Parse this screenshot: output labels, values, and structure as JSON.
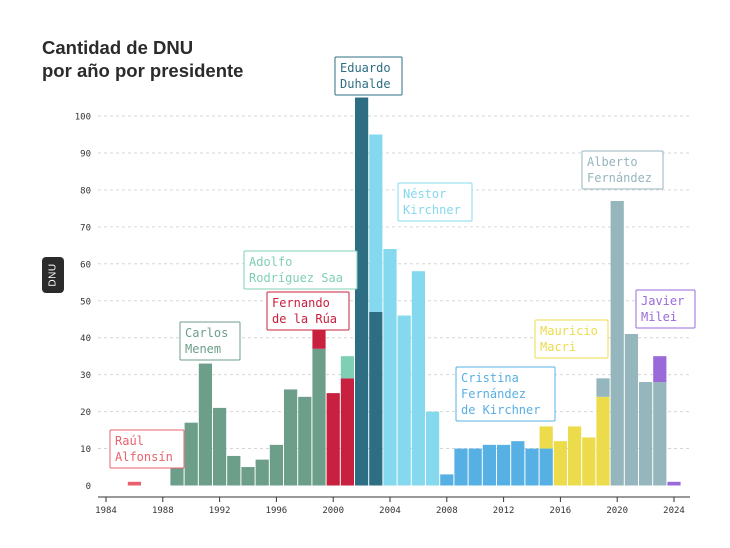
{
  "title_line1": "Cantidad de DNU",
  "title_line2": "por año por presidente",
  "chart_data": {
    "type": "bar",
    "title": "Cantidad de DNU por año por presidente",
    "ylabel": "DNU",
    "xlabel": "",
    "ylim": [
      0,
      105
    ],
    "yticks": [
      0,
      10,
      20,
      30,
      40,
      50,
      60,
      70,
      80,
      90,
      100
    ],
    "xlim": [
      1984,
      2024.5
    ],
    "xticks": [
      1984,
      1988,
      1992,
      1996,
      2000,
      2004,
      2008,
      2012,
      2016,
      2020,
      2024
    ],
    "grid": true,
    "legend": "none",
    "presidents": [
      {
        "id": "alfonsin",
        "label": [
          "Raúl",
          "Alfonsín"
        ],
        "color": "#e8626d"
      },
      {
        "id": "menem",
        "label": [
          "Carlos",
          "Menem"
        ],
        "color": "#6c9e8a"
      },
      {
        "id": "rodriguez_saa",
        "label": [
          "Adolfo",
          "Rodríguez Saa"
        ],
        "color": "#7fcfb5"
      },
      {
        "id": "de_la_rua",
        "label": [
          "Fernando",
          "de la Rúa"
        ],
        "color": "#c8203f"
      },
      {
        "id": "duhalde",
        "label": [
          "Eduardo",
          "Duhalde"
        ],
        "color": "#2e6e82"
      },
      {
        "id": "kirchner",
        "label": [
          "Néstor",
          "Kirchner"
        ],
        "color": "#84d9ee"
      },
      {
        "id": "cfk",
        "label": [
          "Cristina",
          "Fernández",
          "de Kirchner"
        ],
        "color": "#57b0e4"
      },
      {
        "id": "macri",
        "label": [
          "Mauricio",
          "Macri"
        ],
        "color": "#ecdc4c"
      },
      {
        "id": "fernandez",
        "label": [
          "Alberto",
          "Fernández"
        ],
        "color": "#95b6bd"
      },
      {
        "id": "milei",
        "label": [
          "Javier",
          "Milei"
        ],
        "color": "#9a6ad8"
      }
    ],
    "bars": [
      {
        "year": 1986,
        "segments": [
          {
            "president": "alfonsin",
            "value": 1
          }
        ]
      },
      {
        "year": 1989,
        "segments": [
          {
            "president": "menem",
            "value": 5
          }
        ]
      },
      {
        "year": 1990,
        "segments": [
          {
            "president": "menem",
            "value": 17
          }
        ]
      },
      {
        "year": 1991,
        "segments": [
          {
            "president": "menem",
            "value": 33
          }
        ]
      },
      {
        "year": 1992,
        "segments": [
          {
            "president": "menem",
            "value": 21
          }
        ]
      },
      {
        "year": 1993,
        "segments": [
          {
            "president": "menem",
            "value": 8
          }
        ]
      },
      {
        "year": 1994,
        "segments": [
          {
            "president": "menem",
            "value": 5
          }
        ]
      },
      {
        "year": 1995,
        "segments": [
          {
            "president": "menem",
            "value": 7
          }
        ]
      },
      {
        "year": 1996,
        "segments": [
          {
            "president": "menem",
            "value": 11
          }
        ]
      },
      {
        "year": 1997,
        "segments": [
          {
            "president": "menem",
            "value": 26
          }
        ]
      },
      {
        "year": 1998,
        "segments": [
          {
            "president": "menem",
            "value": 24
          }
        ]
      },
      {
        "year": 1999,
        "segments": [
          {
            "president": "menem",
            "value": 37
          },
          {
            "president": "de_la_rua",
            "value": 5
          }
        ]
      },
      {
        "year": 2000,
        "segments": [
          {
            "president": "de_la_rua",
            "value": 25
          }
        ]
      },
      {
        "year": 2001,
        "segments": [
          {
            "president": "de_la_rua",
            "value": 29
          },
          {
            "president": "rodriguez_saa",
            "value": 6
          }
        ]
      },
      {
        "year": 2002,
        "segments": [
          {
            "president": "duhalde",
            "value": 105
          }
        ]
      },
      {
        "year": 2003,
        "segments": [
          {
            "president": "duhalde",
            "value": 47
          },
          {
            "president": "kirchner",
            "value": 48
          }
        ]
      },
      {
        "year": 2004,
        "segments": [
          {
            "president": "kirchner",
            "value": 64
          }
        ]
      },
      {
        "year": 2005,
        "segments": [
          {
            "president": "kirchner",
            "value": 46
          }
        ]
      },
      {
        "year": 2006,
        "segments": [
          {
            "president": "kirchner",
            "value": 58
          }
        ]
      },
      {
        "year": 2007,
        "segments": [
          {
            "president": "kirchner",
            "value": 20
          }
        ]
      },
      {
        "year": 2008,
        "segments": [
          {
            "president": "cfk",
            "value": 3
          }
        ]
      },
      {
        "year": 2009,
        "segments": [
          {
            "president": "cfk",
            "value": 10
          }
        ]
      },
      {
        "year": 2010,
        "segments": [
          {
            "president": "cfk",
            "value": 10
          }
        ]
      },
      {
        "year": 2011,
        "segments": [
          {
            "president": "cfk",
            "value": 11
          }
        ]
      },
      {
        "year": 2012,
        "segments": [
          {
            "president": "cfk",
            "value": 11
          }
        ]
      },
      {
        "year": 2013,
        "segments": [
          {
            "president": "cfk",
            "value": 12
          }
        ]
      },
      {
        "year": 2014,
        "segments": [
          {
            "president": "cfk",
            "value": 10
          }
        ]
      },
      {
        "year": 2015,
        "segments": [
          {
            "president": "cfk",
            "value": 10
          },
          {
            "president": "macri",
            "value": 6
          }
        ]
      },
      {
        "year": 2016,
        "segments": [
          {
            "president": "macri",
            "value": 12
          }
        ]
      },
      {
        "year": 2017,
        "segments": [
          {
            "president": "macri",
            "value": 16
          }
        ]
      },
      {
        "year": 2018,
        "segments": [
          {
            "president": "macri",
            "value": 13
          }
        ]
      },
      {
        "year": 2019,
        "segments": [
          {
            "president": "macri",
            "value": 24
          },
          {
            "president": "fernandez",
            "value": 5
          }
        ]
      },
      {
        "year": 2020,
        "segments": [
          {
            "president": "fernandez",
            "value": 77
          }
        ]
      },
      {
        "year": 2021,
        "segments": [
          {
            "president": "fernandez",
            "value": 41
          }
        ]
      },
      {
        "year": 2022,
        "segments": [
          {
            "president": "fernandez",
            "value": 28
          }
        ]
      },
      {
        "year": 2023,
        "segments": [
          {
            "president": "fernandez",
            "value": 28
          },
          {
            "president": "milei",
            "value": 7
          }
        ]
      },
      {
        "year": 2024,
        "segments": [
          {
            "president": "milei",
            "value": 1
          }
        ]
      }
    ]
  }
}
